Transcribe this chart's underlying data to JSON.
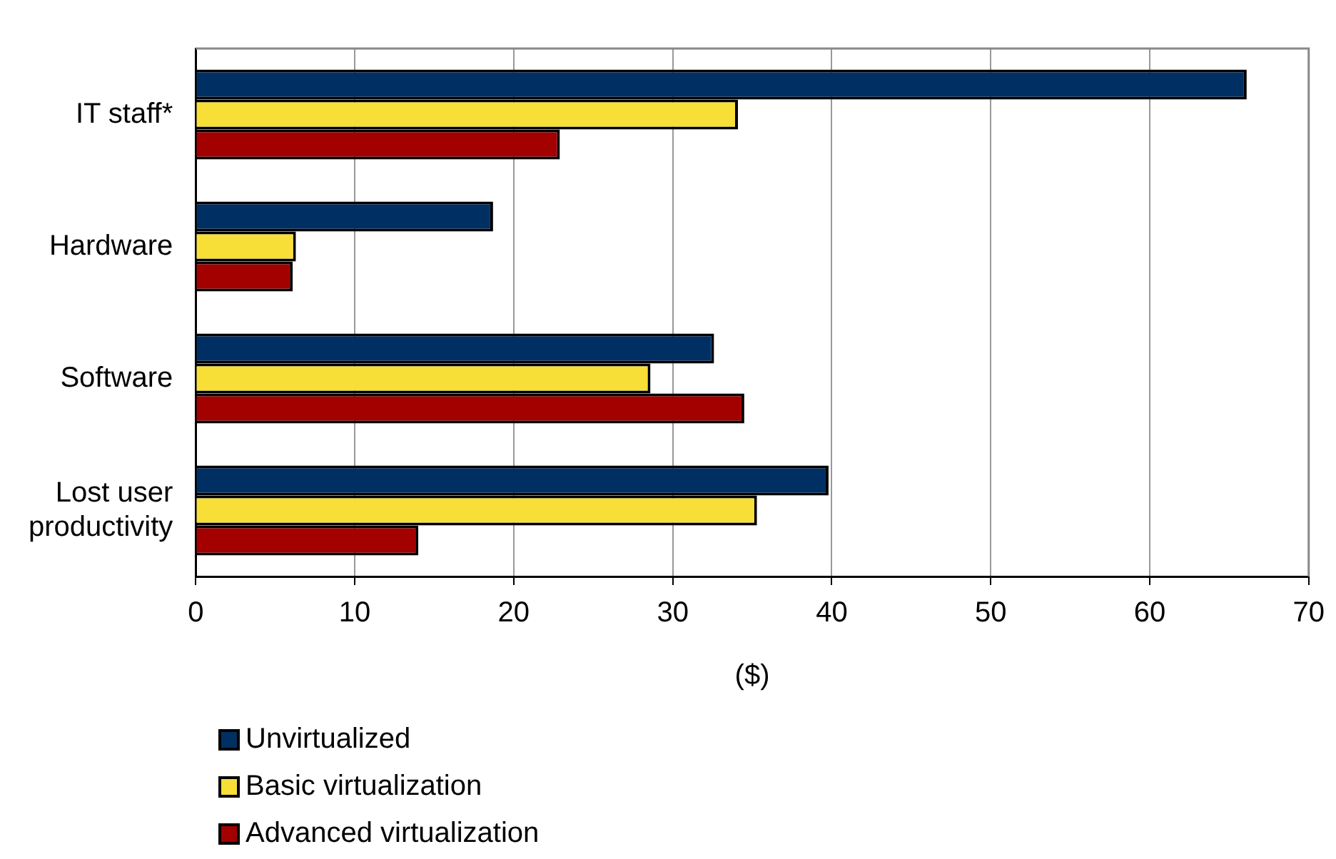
{
  "chart_data": {
    "type": "bar",
    "orientation": "horizontal",
    "xlabel": "($)",
    "categories": [
      "IT staff*",
      "Hardware",
      "Software",
      "Lost user productivity"
    ],
    "series": [
      {
        "name": "Unvirtualized",
        "color": "#003063",
        "values": [
          66.1,
          18.7,
          32.6,
          39.8
        ]
      },
      {
        "name": "Basic virtualization",
        "color": "#f7df38",
        "values": [
          34.1,
          6.3,
          28.6,
          35.3
        ]
      },
      {
        "name": "Advanced virtualization",
        "color": "#a30000",
        "values": [
          22.9,
          6.1,
          34.5,
          14.0
        ]
      }
    ],
    "xlim": [
      0,
      70
    ],
    "xticks": [
      0,
      10,
      20,
      30,
      40,
      50,
      60,
      70
    ],
    "grid": "x",
    "legend": "bottom left"
  }
}
